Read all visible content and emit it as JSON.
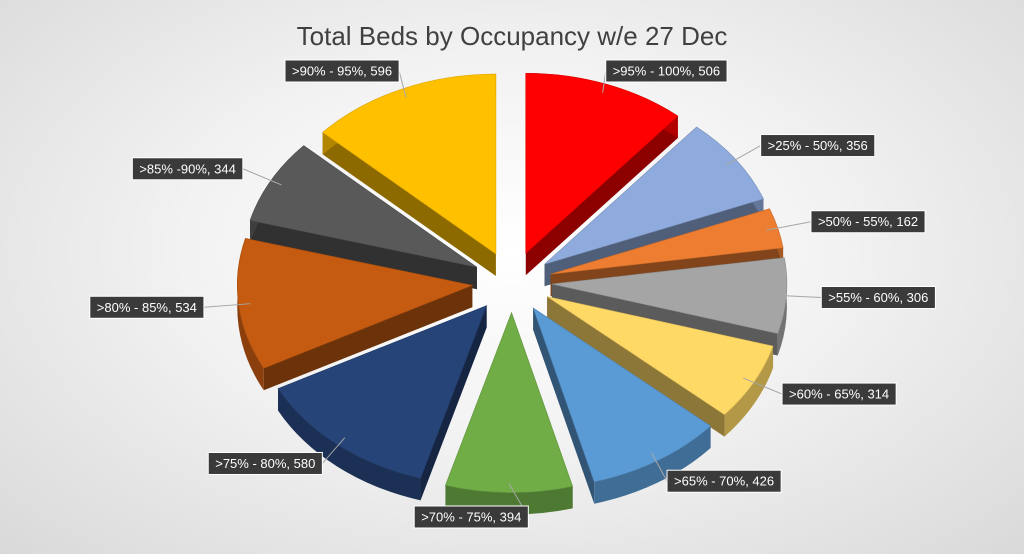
{
  "chart_data": {
    "type": "pie",
    "title": "Total Beds by Occupancy w/e 27 Dec",
    "exploded": true,
    "style": "3d",
    "slices": [
      {
        "label": ">95% - 100%",
        "value": 506,
        "color": "#ff0000",
        "display": ">95% - 100%, 506"
      },
      {
        "label": ">25% - 50%",
        "value": 356,
        "color": "#8faadc",
        "display": ">25% - 50%, 356"
      },
      {
        "label": ">50% - 55%",
        "value": 162,
        "color": "#ed7d31",
        "display": ">50% - 55%, 162"
      },
      {
        "label": ">55% - 60%",
        "value": 306,
        "color": "#a5a5a5",
        "display": ">55% - 60%, 306"
      },
      {
        "label": ">60% - 65%",
        "value": 314,
        "color": "#ffd966",
        "display": ">60% - 65%, 314"
      },
      {
        "label": ">65% - 70%",
        "value": 426,
        "color": "#5b9bd5",
        "display": ">65% - 70%, 426"
      },
      {
        "label": ">70% - 75%",
        "value": 394,
        "color": "#70ad47",
        "display": ">70% - 75%, 394"
      },
      {
        "label": ">75% - 80%",
        "value": 580,
        "color": "#264478",
        "display": ">75% - 80%, 580"
      },
      {
        "label": ">80% - 85%",
        "value": 534,
        "color": "#c55a11",
        "display": ">80% - 85%, 534"
      },
      {
        "label": ">85% -90%",
        "value": 344,
        "color": "#595959",
        "display": ">85% -90%, 344"
      },
      {
        "label": ">90% - 95%",
        "value": 596,
        "color": "#ffc000",
        "display": ">90% - 95%, 596"
      }
    ]
  }
}
